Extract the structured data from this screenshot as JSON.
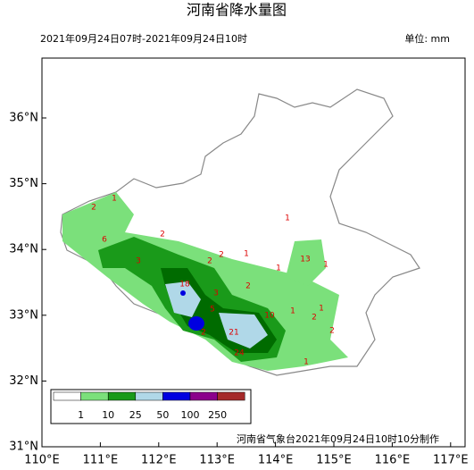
{
  "title": "河南省降水量图",
  "time_range": "2021年09月24日07时-2021年09月24日10时",
  "unit": "单位: mm",
  "lat_labels": [
    "36°N",
    "35°N",
    "34°N",
    "33°N",
    "32°N",
    "31°N"
  ],
  "lon_labels": [
    "110°E",
    "111°E",
    "112°E",
    "113°E",
    "114°E",
    "115°E",
    "116°E",
    "117°E"
  ],
  "legend": {
    "labels": [
      "1",
      "10",
      "25",
      "50",
      "100",
      "250"
    ]
  },
  "stations": [
    "2",
    "1",
    "6",
    "2",
    "3",
    "2",
    "2",
    "1",
    "1",
    "1",
    "2",
    "13",
    "1",
    "2",
    "18",
    "3",
    "5",
    "10",
    "1",
    "21",
    "2",
    "24",
    "1",
    "2",
    "1"
  ],
  "footer": "河南省气象台2021年09月24日10时10分制作"
}
